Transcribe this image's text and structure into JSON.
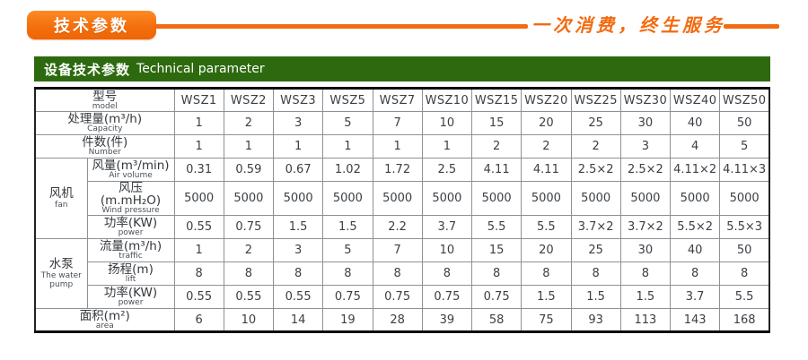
{
  "banner": {
    "ribbon_label": "技术参数",
    "slogan": "一次消费，终生服务",
    "orange": "#f26b11"
  },
  "section_header": {
    "title_zh": "设备技术参数",
    "title_en": "Technical parameter",
    "bg": "#2d6a0f"
  },
  "table": {
    "corner": {
      "zh": "型号",
      "en": "model"
    },
    "models": [
      "WSZ1",
      "WSZ2",
      "WSZ3",
      "WSZ5",
      "WSZ7",
      "WSZ10",
      "WSZ15",
      "WSZ20",
      "WSZ25",
      "WSZ30",
      "WSZ40",
      "WSZ50"
    ],
    "rows": [
      {
        "id": "capacity",
        "zh": "处理量(m³/h)",
        "en": "Capacity",
        "span": 2,
        "values": [
          "1",
          "2",
          "3",
          "5",
          "7",
          "10",
          "15",
          "20",
          "25",
          "30",
          "40",
          "50"
        ]
      },
      {
        "id": "number",
        "zh": "件数(件)",
        "en": "Number",
        "span": 2,
        "values": [
          "1",
          "1",
          "1",
          "1",
          "1",
          "1",
          "2",
          "2",
          "2",
          "3",
          "4",
          "5"
        ]
      },
      {
        "id": "air-volume",
        "zh": "风量(m³/min)",
        "en": "Air volume",
        "group": {
          "zh": "风机",
          "en": "fan",
          "rows": 3
        },
        "values": [
          "0.31",
          "0.59",
          "0.67",
          "1.02",
          "1.72",
          "2.5",
          "4.11",
          "4.11",
          "2.5×2",
          "2.5×2",
          "4.11×2",
          "4.11×3"
        ]
      },
      {
        "id": "wind-pressure",
        "zh": "风压(m.mH₂O)",
        "en": "Wind pressure",
        "values": [
          "5000",
          "5000",
          "5000",
          "5000",
          "5000",
          "5000",
          "5000",
          "5000",
          "5000",
          "5000",
          "5000",
          "5000"
        ]
      },
      {
        "id": "fan-power",
        "zh": "功率(KW)",
        "en": "power",
        "values": [
          "0.55",
          "0.75",
          "1.5",
          "1.5",
          "2.2",
          "3.7",
          "5.5",
          "5.5",
          "3.7×2",
          "3.7×2",
          "5.5×2",
          "5.5×3"
        ]
      },
      {
        "id": "flow",
        "zh": "流量(m³/h)",
        "en": "traffic",
        "group": {
          "zh": "水泵",
          "en": "The water pump",
          "rows": 3
        },
        "values": [
          "1",
          "2",
          "3",
          "5",
          "7",
          "10",
          "15",
          "20",
          "25",
          "30",
          "40",
          "50"
        ]
      },
      {
        "id": "lift",
        "zh": "扬程(m)",
        "en": "lift",
        "values": [
          "8",
          "8",
          "8",
          "8",
          "8",
          "8",
          "8",
          "8",
          "8",
          "8",
          "8",
          "8"
        ]
      },
      {
        "id": "pump-power",
        "zh": "功率(KW)",
        "en": "power",
        "values": [
          "0.55",
          "0.55",
          "0.55",
          "0.75",
          "0.75",
          "0.75",
          "0.75",
          "1.5",
          "1.5",
          "1.5",
          "3.7",
          "5.5"
        ]
      },
      {
        "id": "area",
        "zh": "面积(m²)",
        "en": "area",
        "span": 2,
        "align": "left",
        "values": [
          "6",
          "10",
          "14",
          "19",
          "28",
          "39",
          "58",
          "75",
          "93",
          "113",
          "143",
          "168"
        ]
      }
    ]
  }
}
